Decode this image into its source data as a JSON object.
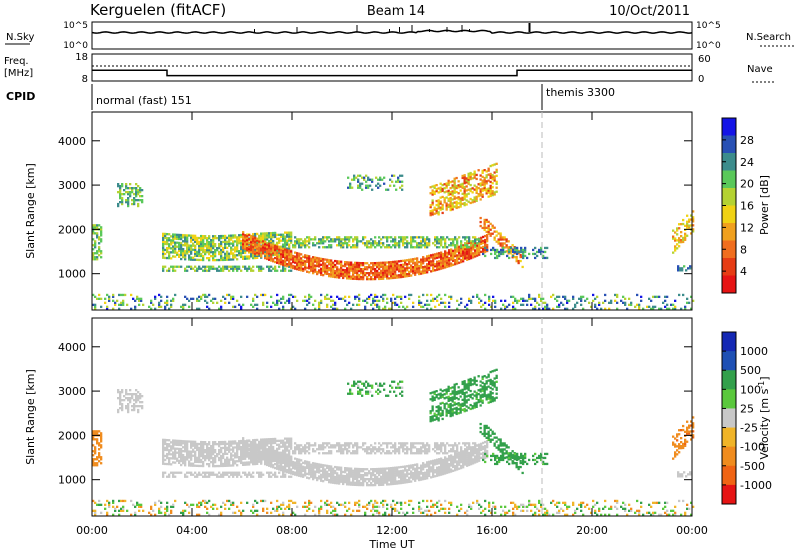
{
  "header": {
    "station": "Kerguelen (fitACF)",
    "beam": "Beam 14",
    "date": "10/Oct/2011"
  },
  "top_panels": {
    "nsky_label": "N.Sky",
    "nsky_ticks": [
      "10^5",
      "10^0"
    ],
    "nsearch_label": "N.Search",
    "nsearch_ticks": [
      "10^5",
      "10^0"
    ],
    "freq_label": "Freq.",
    "freq_unit": "[MHz]",
    "freq_ticks": [
      "18",
      "8"
    ],
    "nave_label": "Nave",
    "nave_ticks": [
      "60",
      "0"
    ],
    "cpid_label": "CPID",
    "modes": [
      {
        "label": "normal (fast) 151",
        "start_hour": 0.0,
        "end_hour": 18.0
      },
      {
        "label": "themis 3300",
        "start_hour": 18.0,
        "end_hour": 24.0
      }
    ],
    "freq_segments": [
      {
        "from_hour": 0.0,
        "to_hour": 3.0,
        "mhz": 12.0
      },
      {
        "from_hour": 3.0,
        "to_hour": 17.0,
        "mhz": 10.0
      },
      {
        "from_hour": 17.0,
        "to_hour": 24.0,
        "mhz": 12.0
      }
    ]
  },
  "chart_data": [
    {
      "type": "heatmap",
      "name": "power",
      "xlabel": "Time UT",
      "ylabel": "Slant Range [km]",
      "xticks": [
        "00:00",
        "04:00",
        "08:00",
        "12:00",
        "16:00",
        "20:00",
        "00:00"
      ],
      "xlim_hours": [
        0,
        24
      ],
      "yticks": [
        "1000",
        "2000",
        "3000",
        "4000"
      ],
      "ylim": [
        180,
        4650
      ],
      "colorbar": {
        "label": "Power [dB]",
        "ticks": [
          "4",
          "8",
          "12",
          "16",
          "20",
          "24",
          "28"
        ],
        "colors": [
          "#1414e6",
          "#2850b4",
          "#3c8c8c",
          "#5ac85a",
          "#b4d232",
          "#f0d214",
          "#f0a01e",
          "#f06e1e",
          "#e63c14",
          "#e61414"
        ]
      }
    },
    {
      "type": "heatmap",
      "name": "velocity",
      "xlabel": "Time UT",
      "ylabel": "Slant Range [km]",
      "xticks": [
        "00:00",
        "04:00",
        "08:00",
        "12:00",
        "16:00",
        "20:00",
        "00:00"
      ],
      "xlim_hours": [
        0,
        24
      ],
      "yticks": [
        "1000",
        "2000",
        "3000",
        "4000"
      ],
      "ylim": [
        180,
        4650
      ],
      "colorbar": {
        "label": "Velocity [m s",
        "label_superscript": "-1",
        "label_suffix": "]",
        "ticks": [
          "1000",
          "500",
          "100",
          "25",
          "-25",
          "-100",
          "-500",
          "-1000"
        ],
        "colors": [
          "#1428b4",
          "#1e50b4",
          "#32a04b",
          "#5ac83c",
          "#c8c8c8",
          "#f0b428",
          "#f08c1e",
          "#f06414",
          "#e61414"
        ]
      }
    }
  ]
}
